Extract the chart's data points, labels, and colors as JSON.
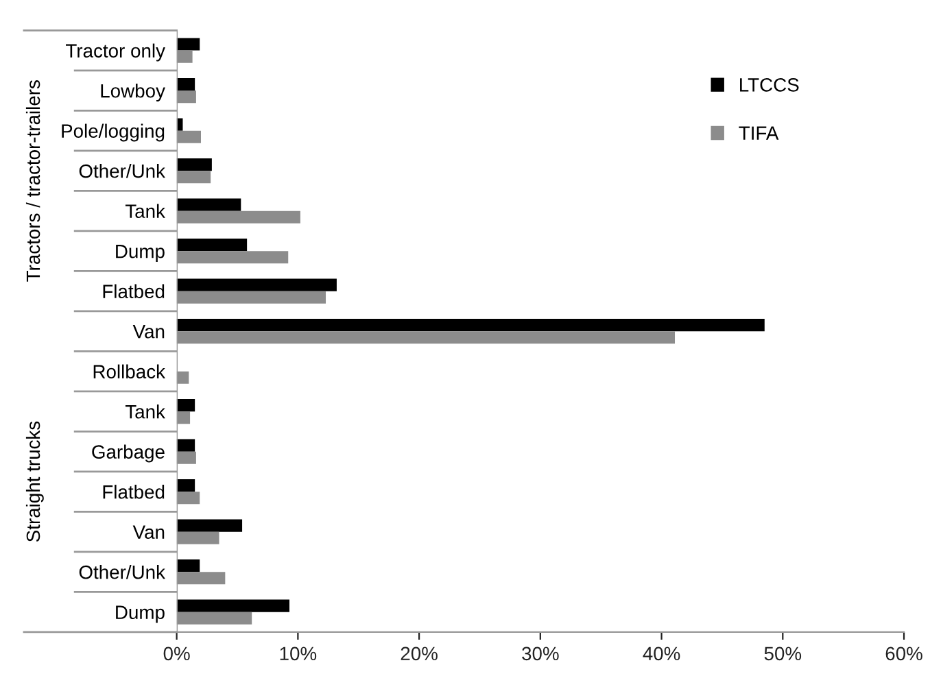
{
  "chart_data": {
    "type": "bar",
    "orientation": "horizontal",
    "categories": [
      "Tractor only",
      "Lowboy",
      "Pole/logging",
      "Other/Unk",
      "Tank",
      "Dump",
      "Flatbed",
      "Van",
      "Rollback",
      "Tank",
      "Garbage",
      "Flatbed",
      "Van",
      "Other/Unk",
      "Dump"
    ],
    "series": [
      {
        "name": "LTCCS",
        "color": "#000000",
        "values": [
          1.9,
          1.5,
          0.5,
          2.9,
          5.3,
          5.8,
          13.2,
          48.5,
          0,
          1.5,
          1.5,
          1.5,
          5.4,
          1.9,
          9.3
        ]
      },
      {
        "name": "TIFA",
        "color": "#8c8c8c",
        "values": [
          1.3,
          1.6,
          2.0,
          2.8,
          10.2,
          9.2,
          12.3,
          41.1,
          1.0,
          1.1,
          1.6,
          1.9,
          3.5,
          4.0,
          6.2
        ]
      }
    ],
    "xlim": [
      0,
      60
    ],
    "xticks": [
      {
        "value": 0,
        "label": "0%"
      },
      {
        "value": 10,
        "label": "10%"
      },
      {
        "value": 20,
        "label": "20%"
      },
      {
        "value": 30,
        "label": "30%"
      },
      {
        "value": 40,
        "label": "40%"
      },
      {
        "value": 50,
        "label": "50%"
      },
      {
        "value": 60,
        "label": "60%"
      }
    ],
    "annotations": [
      "Tractors / tractor-trailers",
      "Straight trucks"
    ],
    "legend": "top right",
    "grid": false
  }
}
